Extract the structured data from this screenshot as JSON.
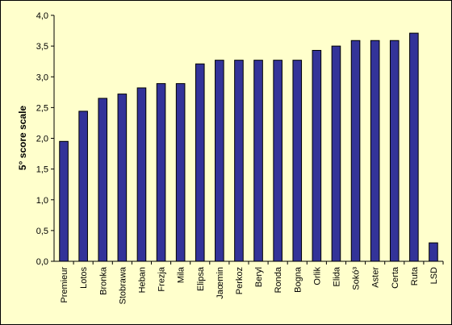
{
  "chart_data": {
    "type": "bar",
    "title": "",
    "xlabel": "",
    "ylabel": "5° score scale",
    "ylim": [
      0,
      4
    ],
    "y_ticks": [
      "0,0",
      "0,5",
      "1,0",
      "1,5",
      "2,0",
      "2,5",
      "3,0",
      "3,5",
      "4,0"
    ],
    "categories": [
      "Premieur",
      "Lotos",
      "Bronka",
      "Stobrawa",
      "Heban",
      "Frezja",
      "Mila",
      "Elipsa",
      "Jaœmin",
      "Perkoz",
      "Beryl",
      "Ronda",
      "Bogna",
      "Orlik",
      "Elida",
      "Sokó³",
      "Aster",
      "Certa",
      "Ruta",
      "LSD"
    ],
    "values": [
      1.95,
      2.44,
      2.65,
      2.72,
      2.82,
      2.89,
      2.89,
      3.21,
      3.27,
      3.27,
      3.27,
      3.27,
      3.27,
      3.43,
      3.5,
      3.59,
      3.59,
      3.59,
      3.71,
      0.3
    ],
    "bar_color": "#333399",
    "grid": false,
    "legend": "none",
    "background": "#ffffcc"
  }
}
